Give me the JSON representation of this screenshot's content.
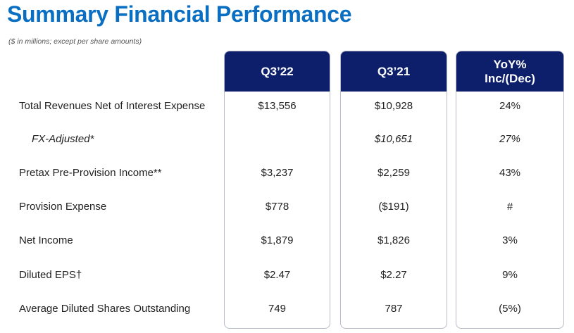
{
  "title": "Summary Financial Performance",
  "subtitle": "($ in millions; except per share amounts)",
  "columns": {
    "q3_22": "Q3’22",
    "q3_21": "Q3’21",
    "yoy_line1": "YoY%",
    "yoy_line2": "Inc/(Dec)"
  },
  "rows": [
    {
      "label": "Total Revenues Net of Interest Expense",
      "q3_22": "$13,556",
      "q3_21": "$10,928",
      "yoy": "24%"
    },
    {
      "label": "FX-Adjusted*",
      "q3_22": "",
      "q3_21": "$10,651",
      "yoy": "27%"
    },
    {
      "label": "Pretax Pre-Provision Income**",
      "q3_22": "$3,237",
      "q3_21": "$2,259",
      "yoy": "43%"
    },
    {
      "label": "Provision Expense",
      "q3_22": "$778",
      "q3_21": "($191)",
      "yoy": "#"
    },
    {
      "label": "Net Income",
      "q3_22": "$1,879",
      "q3_21": "$1,826",
      "yoy": "3%"
    },
    {
      "label": "Diluted EPS†",
      "q3_22": "$2.47",
      "q3_21": "$2.27",
      "yoy": "9%"
    },
    {
      "label": "Average Diluted Shares Outstanding",
      "q3_22": "749",
      "q3_21": "787",
      "yoy": "(5%)"
    }
  ],
  "colors": {
    "title": "#0a6fc2",
    "header_bg": "#0d1f6b",
    "header_text": "#ffffff",
    "border": "#b7bcc6"
  }
}
